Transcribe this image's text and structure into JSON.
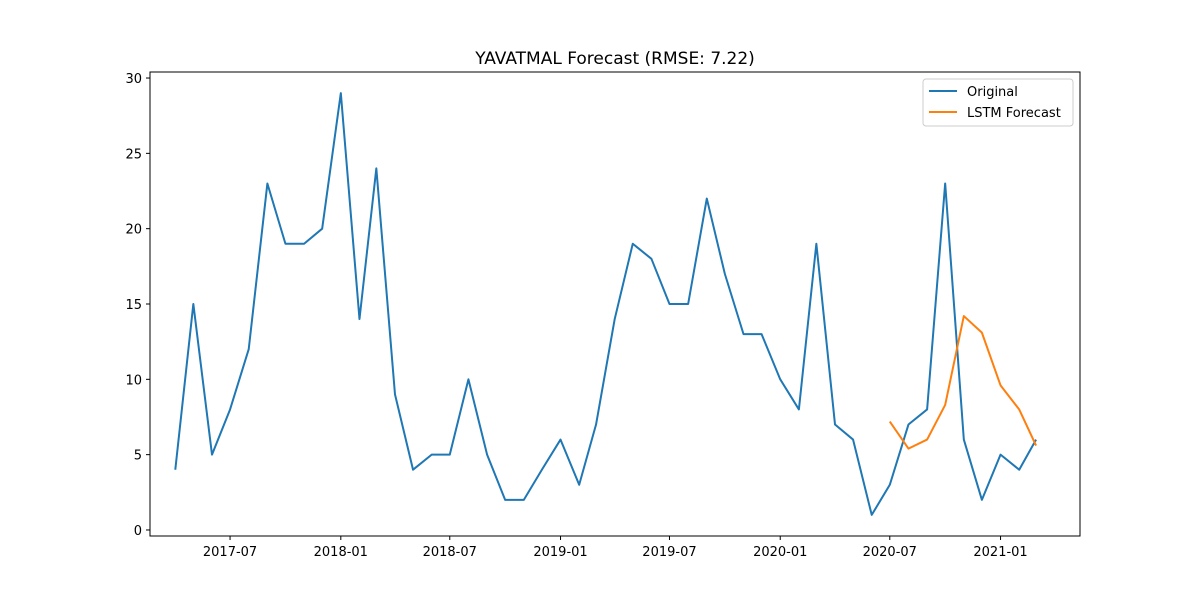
{
  "chart_data": {
    "type": "line",
    "title": "YAVATMAL Forecast (RMSE: 7.22)",
    "xlabel": "",
    "ylabel": "",
    "xlim": [
      "2017-02-18",
      "2021-05-13"
    ],
    "ylim": [
      -0.4,
      30.4
    ],
    "x_ticks": [
      "2017-07",
      "2018-01",
      "2018-07",
      "2019-01",
      "2019-07",
      "2020-01",
      "2020-07",
      "2021-01"
    ],
    "y_ticks": [
      0,
      5,
      10,
      15,
      20,
      25,
      30
    ],
    "grid": false,
    "legend_position": "top-right",
    "series": [
      {
        "name": "Original",
        "color": "#1f77b4",
        "x": [
          "2017-04",
          "2017-05",
          "2017-06",
          "2017-07",
          "2017-08",
          "2017-09",
          "2017-10",
          "2017-11",
          "2017-12",
          "2018-01",
          "2018-02",
          "2018-03",
          "2018-04",
          "2018-05",
          "2018-06",
          "2018-07",
          "2018-08",
          "2018-09",
          "2018-10",
          "2018-11",
          "2018-12",
          "2019-01",
          "2019-02",
          "2019-03",
          "2019-04",
          "2019-05",
          "2019-06",
          "2019-07",
          "2019-08",
          "2019-09",
          "2019-10",
          "2019-11",
          "2019-12",
          "2020-01",
          "2020-02",
          "2020-03",
          "2020-04",
          "2020-05",
          "2020-06",
          "2020-07",
          "2020-08",
          "2020-09",
          "2020-10",
          "2020-11",
          "2020-12",
          "2021-01",
          "2021-02",
          "2021-03"
        ],
        "values": [
          4,
          15,
          5,
          8,
          12,
          23,
          19,
          19,
          20,
          29,
          14,
          24,
          9,
          4,
          5,
          5,
          10,
          5,
          2,
          2,
          4,
          6,
          3,
          7,
          14,
          19,
          18,
          15,
          15,
          22,
          17,
          13,
          13,
          10,
          8,
          19,
          7,
          6,
          1,
          3,
          7,
          8,
          23,
          6,
          2,
          5,
          4,
          6
        ]
      },
      {
        "name": "LSTM Forecast",
        "color": "#ff7f0e",
        "x": [
          "2020-07",
          "2020-08",
          "2020-09",
          "2020-10",
          "2020-11",
          "2020-12",
          "2021-01",
          "2021-02",
          "2021-03"
        ],
        "values": [
          7.2,
          5.4,
          6.0,
          8.3,
          14.2,
          13.1,
          9.6,
          8.0,
          5.6
        ]
      }
    ]
  }
}
